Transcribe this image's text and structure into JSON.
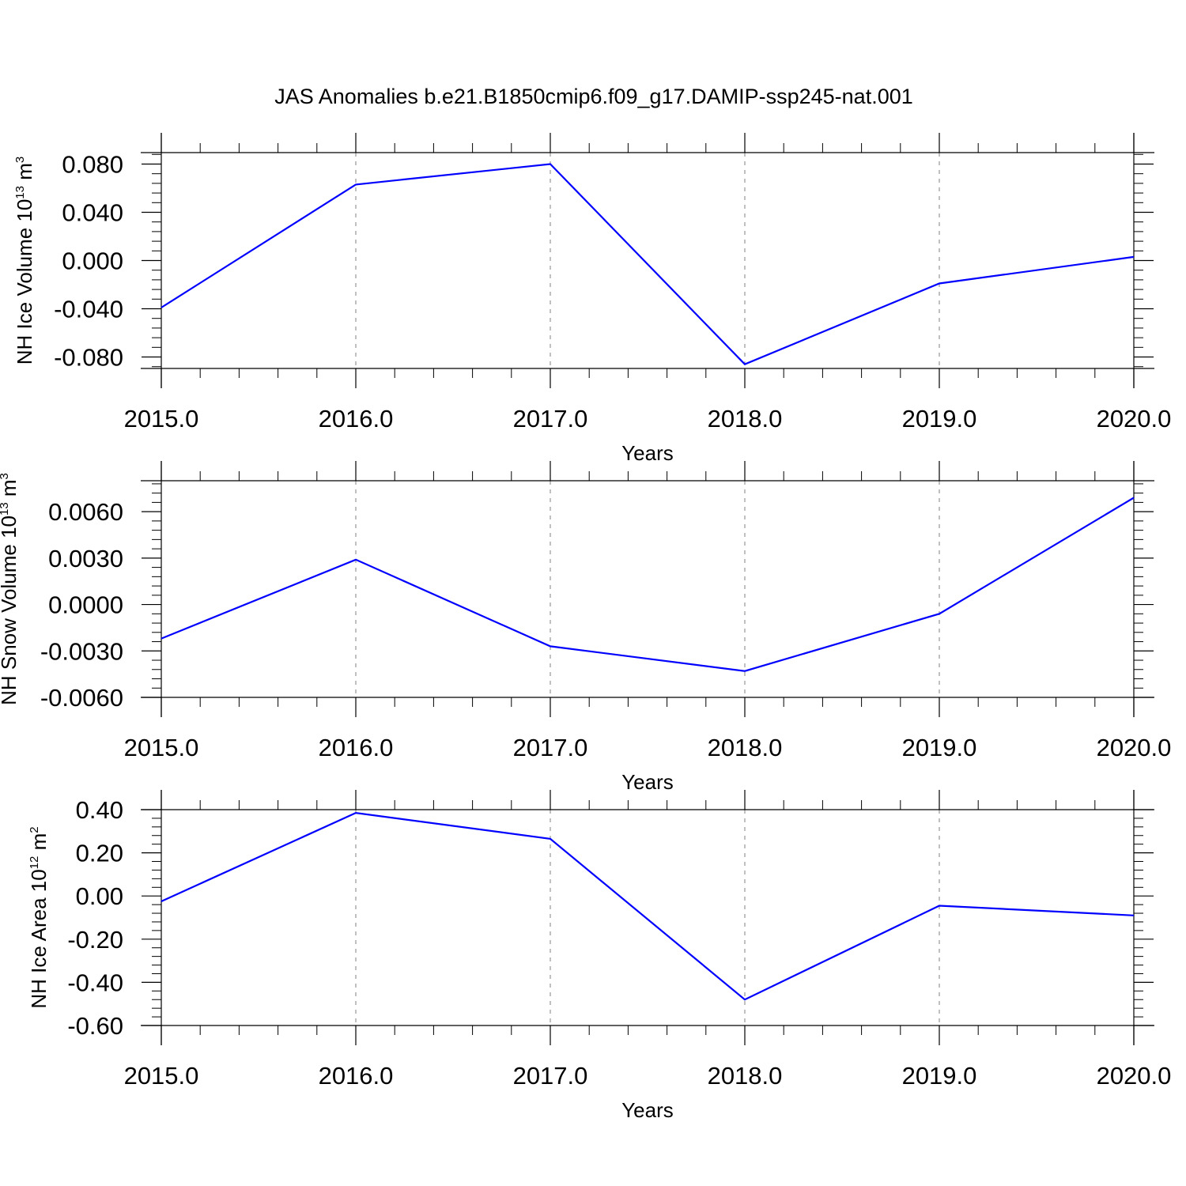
{
  "figure": {
    "title": "JAS Anomalies b.e21.B1850cmip6.f09_g17.DAMIP-ssp245-nat.001",
    "line_color": "#0000ff",
    "grid_color": "#808080",
    "axis_color": "#000000"
  },
  "chart_data": [
    {
      "type": "line",
      "x": [
        2015,
        2016,
        2017,
        2018,
        2019,
        2020
      ],
      "series": [
        {
          "values": [
            -0.039,
            0.063,
            0.08,
            -0.086,
            -0.019,
            0.003
          ]
        }
      ],
      "xlabel": "Years",
      "ylabel_main": "NH Ice Volume 10",
      "ylabel_exp": "13",
      "ylabel_unit": " m",
      "ylabel_unit_exp": "3",
      "xlim": [
        2015,
        2020
      ],
      "ylim": [
        -0.0895,
        0.0895
      ],
      "xticks": [
        2015,
        2016,
        2017,
        2018,
        2019,
        2020
      ],
      "xtick_labels": [
        "2015.0",
        "2016.0",
        "2017.0",
        "2018.0",
        "2019.0",
        "2020.0"
      ],
      "yticks": [
        -0.08,
        -0.04,
        0.0,
        0.04,
        0.08
      ],
      "ytick_labels": [
        "-0.080",
        "-0.040",
        "0.000",
        "0.040",
        "0.080"
      ],
      "y_minor_step": 0.008,
      "grid": "vertical dashed at major x ticks"
    },
    {
      "type": "line",
      "x": [
        2015,
        2016,
        2017,
        2018,
        2019,
        2020
      ],
      "series": [
        {
          "values": [
            -0.0022,
            0.0029,
            -0.0027,
            -0.0043,
            -0.0006,
            0.0069
          ]
        }
      ],
      "xlabel": "Years",
      "ylabel_main": "NH Snow Volume 10",
      "ylabel_exp": "13",
      "ylabel_unit": " m",
      "ylabel_unit_exp": "3",
      "xlim": [
        2015,
        2020
      ],
      "ylim": [
        -0.006,
        0.008
      ],
      "xticks": [
        2015,
        2016,
        2017,
        2018,
        2019,
        2020
      ],
      "xtick_labels": [
        "2015.0",
        "2016.0",
        "2017.0",
        "2018.0",
        "2019.0",
        "2020.0"
      ],
      "yticks": [
        -0.006,
        -0.003,
        0.0,
        0.003,
        0.006
      ],
      "ytick_labels": [
        "-0.0060",
        "-0.0030",
        "0.0000",
        "0.0030",
        "0.0060"
      ],
      "y_minor_step": 0.0006,
      "grid": "vertical dashed at major x ticks"
    },
    {
      "type": "line",
      "x": [
        2015,
        2016,
        2017,
        2018,
        2019,
        2020
      ],
      "series": [
        {
          "values": [
            -0.025,
            0.385,
            0.265,
            -0.48,
            -0.045,
            -0.09
          ]
        }
      ],
      "xlabel": "Years",
      "ylabel_main": "NH Ice Area 10",
      "ylabel_exp": "12",
      "ylabel_unit": " m",
      "ylabel_unit_exp": "2",
      "xlim": [
        2015,
        2020
      ],
      "ylim": [
        -0.6,
        0.4
      ],
      "xticks": [
        2015,
        2016,
        2017,
        2018,
        2019,
        2020
      ],
      "xtick_labels": [
        "2015.0",
        "2016.0",
        "2017.0",
        "2018.0",
        "2019.0",
        "2020.0"
      ],
      "yticks": [
        -0.6,
        -0.4,
        -0.2,
        0.0,
        0.2,
        0.4
      ],
      "ytick_labels": [
        "-0.60",
        "-0.40",
        "-0.20",
        "0.00",
        "0.20",
        "0.40"
      ],
      "y_minor_step": 0.04,
      "grid": "vertical dashed at major x ticks"
    }
  ]
}
